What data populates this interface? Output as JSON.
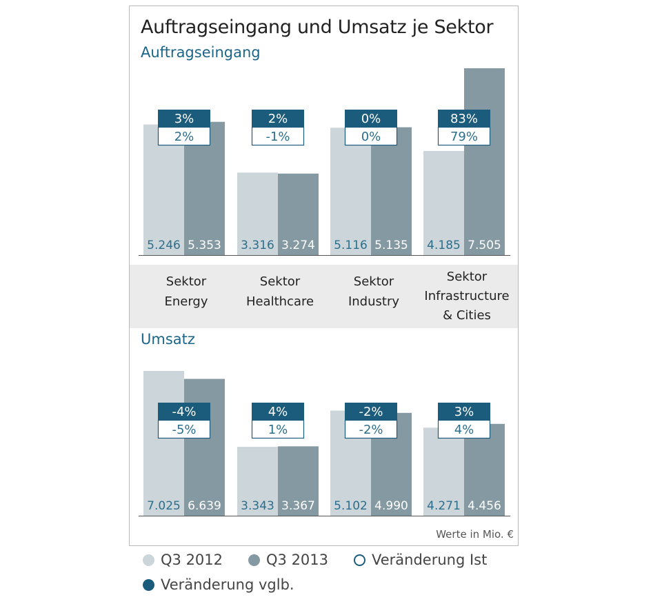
{
  "title": "Auftragseingang und Umsatz je Sektor",
  "unit_note": "Werte in Mio. €",
  "sectors": [
    {
      "line1": "Sektor",
      "line2": "Energy"
    },
    {
      "line1": "Sektor",
      "line2": "Healthcare"
    },
    {
      "line1": "Sektor",
      "line2": "Industry"
    },
    {
      "line1": "Sektor",
      "line2": "Infrastructure",
      "line3": "& Cities"
    }
  ],
  "legend": {
    "q3_2012": "Q3 2012",
    "q3_2013": "Q3 2013",
    "change_actual": "Veränderung Ist",
    "change_comparable": "Veränderung vglb."
  },
  "colors": {
    "q3_2012": "#ccd5da",
    "q3_2013": "#8499a2",
    "change_box": "#1b5b7c",
    "section_label": "#1b6688"
  },
  "chart_data": [
    {
      "type": "bar",
      "title": "Auftragseingang",
      "categories": [
        "Sektor Energy",
        "Sektor Healthcare",
        "Sektor Industry",
        "Sektor Infrastructure & Cities"
      ],
      "series": [
        {
          "name": "Q3 2012",
          "values": [
            5246,
            3316,
            5116,
            4185
          ],
          "labels": [
            "5.246",
            "3.316",
            "5.116",
            "4.185"
          ]
        },
        {
          "name": "Q3 2013",
          "values": [
            5353,
            3274,
            5135,
            7505
          ],
          "labels": [
            "5.353",
            "3.274",
            "5.135",
            "7.505"
          ]
        }
      ],
      "change_comparable": [
        "3%",
        "2%",
        "0%",
        "83%"
      ],
      "change_actual": [
        "2%",
        "-1%",
        "0%",
        "79%"
      ]
    },
    {
      "type": "bar",
      "title": "Umsatz",
      "categories": [
        "Sektor Energy",
        "Sektor Healthcare",
        "Sektor Industry",
        "Sektor Infrastructure & Cities"
      ],
      "series": [
        {
          "name": "Q3 2012",
          "values": [
            7025,
            3343,
            5102,
            4271
          ],
          "labels": [
            "7.025",
            "3.343",
            "5.102",
            "4.271"
          ]
        },
        {
          "name": "Q3 2013",
          "values": [
            6639,
            3367,
            4990,
            4456
          ],
          "labels": [
            "6.639",
            "3.367",
            "4.990",
            "4.456"
          ]
        }
      ],
      "change_comparable": [
        "-4%",
        "4%",
        "-2%",
        "3%"
      ],
      "change_actual": [
        "-5%",
        "1%",
        "-2%",
        "4%"
      ]
    }
  ]
}
